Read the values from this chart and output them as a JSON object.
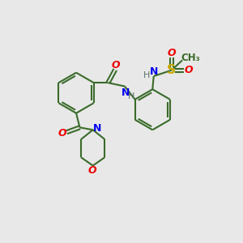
{
  "bg_color": "#e8e8e8",
  "bond_color": "#3a6b2a",
  "N_color": "#0000ee",
  "O_color": "#ee0000",
  "S_color": "#ccaa00",
  "H_color": "#607070",
  "line_width": 1.5,
  "figsize": [
    3.0,
    3.0
  ],
  "dpi": 100,
  "xlim": [
    0,
    10
  ],
  "ylim": [
    0,
    10
  ]
}
